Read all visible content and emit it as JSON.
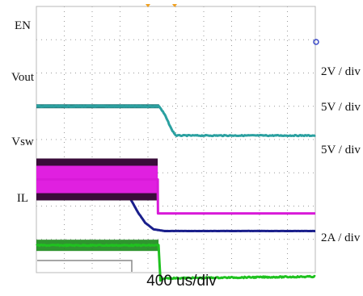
{
  "chart_data": {
    "type": "line",
    "title": "",
    "xlabel": "400 us/div",
    "ylabel": "",
    "x_divisions": 10,
    "y_divisions": 8,
    "grid": true,
    "trigger_marker_color": "#f0a020",
    "series": [
      {
        "name": "EN",
        "scale": "2V / div",
        "color": "#1a1f8c",
        "points": [
          [
            0,
            2.47
          ],
          [
            3.2,
            2.47
          ],
          [
            3.45,
            2.1
          ],
          [
            3.65,
            1.8
          ],
          [
            3.9,
            1.5
          ],
          [
            4.2,
            1.3
          ],
          [
            4.6,
            1.25
          ],
          [
            10,
            1.25
          ]
        ]
      },
      {
        "name": "Vout",
        "scale": "5V / div",
        "color": "#2aa0a0",
        "points": [
          [
            0,
            5.0
          ],
          [
            4.4,
            5.0
          ],
          [
            4.6,
            4.75
          ],
          [
            4.85,
            4.3
          ],
          [
            5.0,
            4.12
          ],
          [
            10,
            4.12
          ]
        ]
      },
      {
        "name": "Vsw",
        "scale": "5V / div",
        "color": "#d81ad8",
        "points": [
          [
            0,
            2.8
          ],
          [
            4.35,
            2.8
          ],
          [
            4.36,
            1.78
          ],
          [
            10,
            1.78
          ]
        ]
      },
      {
        "name": "IL",
        "scale": "2A / div",
        "color": "#1fc21f",
        "points": [
          [
            0,
            0.82
          ],
          [
            4.38,
            0.82
          ],
          [
            4.45,
            -0.25
          ],
          [
            4.6,
            -0.17
          ],
          [
            10,
            -0.12
          ]
        ]
      }
    ]
  }
}
